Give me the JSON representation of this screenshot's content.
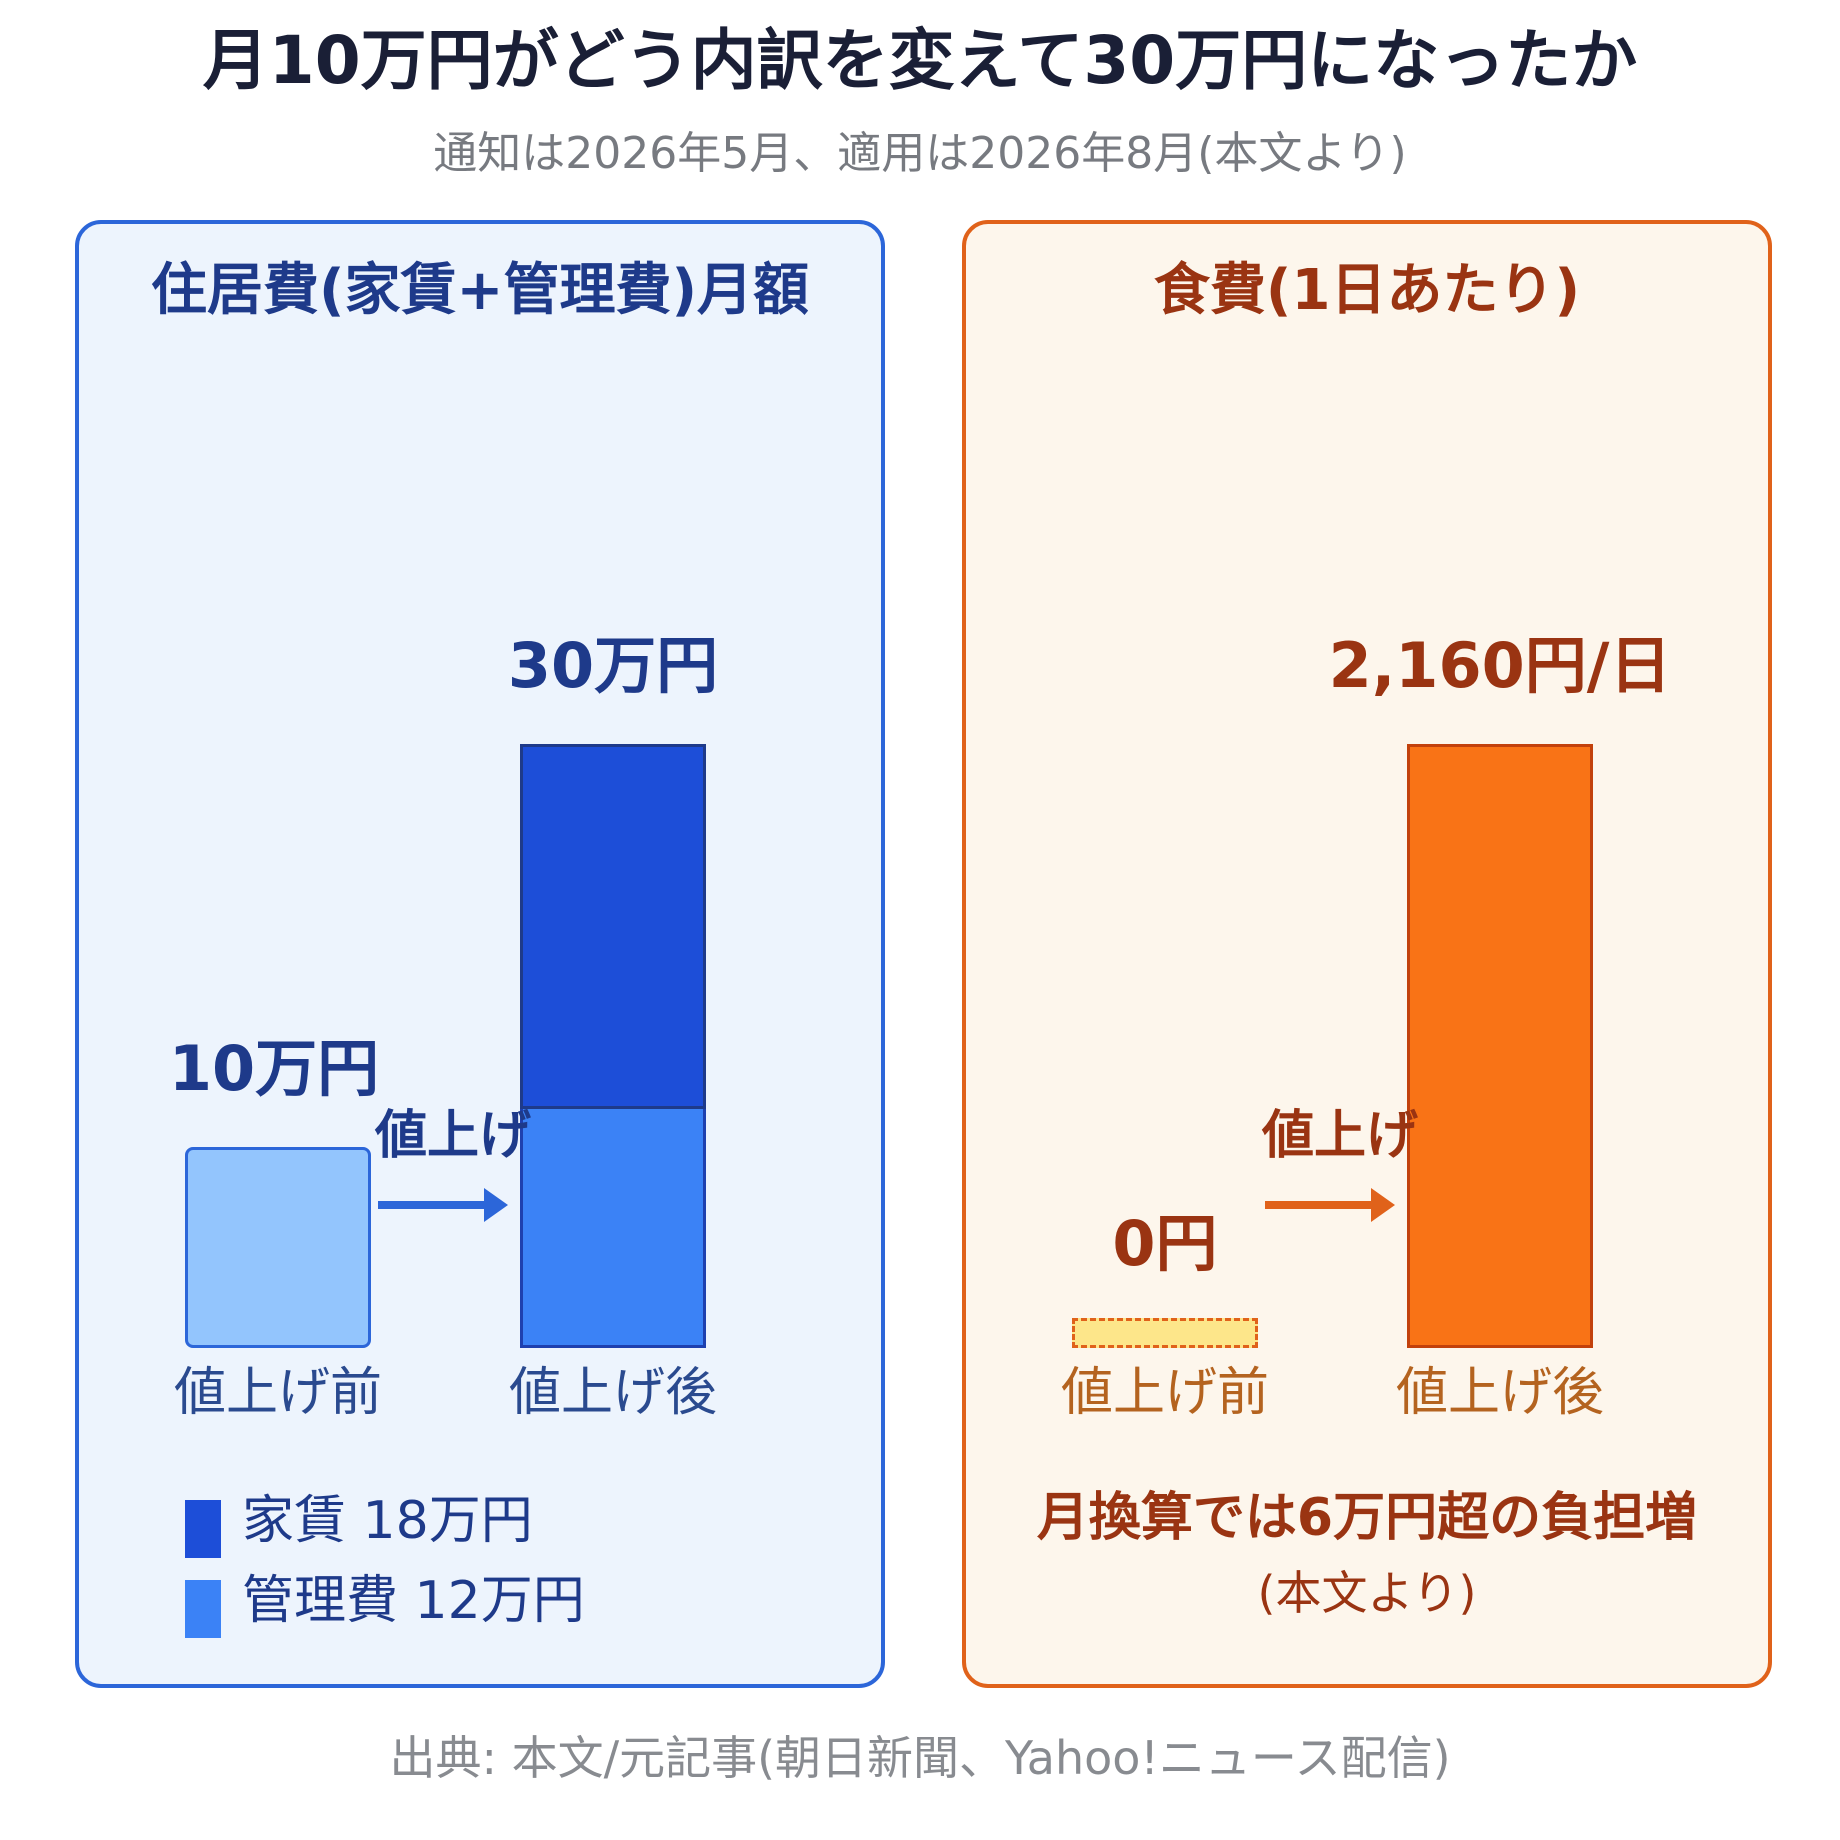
{
  "title": "月10万円がどう内訳を変えて30万円になったか",
  "subtitle": "通知は2026年5月、適用は2026年8月(本文より)",
  "source": "出典: 本文/元記事(朝日新聞、Yahoo!ニュース配信)",
  "colors": {
    "left_border": "#2c66d9",
    "left_bg": "#edf4fd",
    "left_text": "#1e3a8a",
    "before_bar": "#93c5fd",
    "rent": "#1d4ed8",
    "management": "#3b82f6",
    "right_border": "#e0621a",
    "right_bg": "#fdf6ec",
    "right_text": "#9a3412",
    "food_bar": "#f97316",
    "food_before": "#fde68a"
  },
  "chart_data": [
    {
      "type": "bar",
      "title": "住居費(家賃+管理費)月額",
      "categories": [
        "値上げ前",
        "値上げ後"
      ],
      "unit": "万円",
      "ylim": [
        0,
        30
      ],
      "series": [
        {
          "name": "家賃",
          "values": [
            null,
            18
          ]
        },
        {
          "name": "管理費",
          "values": [
            null,
            12
          ]
        }
      ],
      "totals": [
        10,
        30
      ],
      "value_labels": [
        "10万円",
        "30万円"
      ],
      "legend": [
        "家賃 18万円",
        "管理費 12万円"
      ],
      "legend_position": "bottom-left",
      "arrow_label": "値上げ"
    },
    {
      "type": "bar",
      "title": "食費(1日あたり)",
      "categories": [
        "値上げ前",
        "値上げ後"
      ],
      "unit": "円",
      "ylim": [
        0,
        2160
      ],
      "values": [
        0,
        2160
      ],
      "value_labels": [
        "0円",
        "2,160円/日"
      ],
      "arrow_label": "値上げ",
      "note": "月換算では6万円超の負担増",
      "note_sub": "(本文より)"
    }
  ]
}
